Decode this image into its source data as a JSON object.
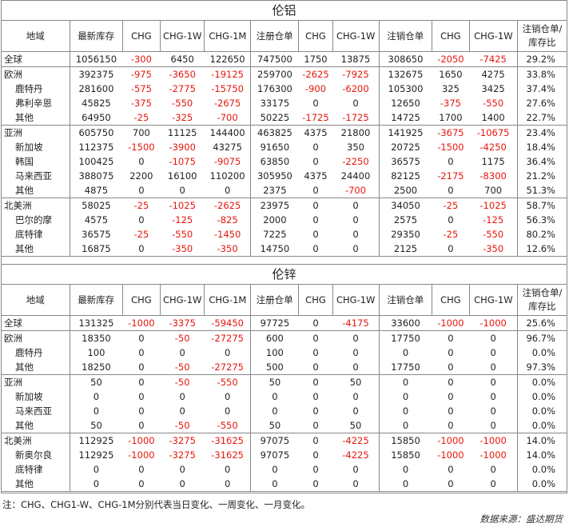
{
  "aluminum": {
    "title": "伦铝",
    "headers": [
      "地域",
      "最新库存",
      "CHG",
      "CHG-1W",
      "CHG-1M",
      "注册仓单",
      "CHG",
      "CHG-1W",
      "注销仓单",
      "CHG",
      "CHG-1W",
      "注销仓单/库存比"
    ],
    "groups": [
      {
        "rows": [
          {
            "region": "全球",
            "level": "region",
            "vals": [
              "1056150",
              "-300",
              "6450",
              "122650",
              "747500",
              "1750",
              "13875",
              "308650",
              "-2050",
              "-7425",
              "29.2%"
            ]
          }
        ]
      },
      {
        "rows": [
          {
            "region": "欧洲",
            "level": "region",
            "vals": [
              "392375",
              "-975",
              "-3650",
              "-19125",
              "259700",
              "-2625",
              "-7925",
              "132675",
              "1650",
              "4275",
              "33.8%"
            ]
          },
          {
            "region": "鹿特丹",
            "level": "sub",
            "vals": [
              "281600",
              "-575",
              "-2775",
              "-15750",
              "176300",
              "-900",
              "-6200",
              "105300",
              "325",
              "3425",
              "37.4%"
            ]
          },
          {
            "region": "弗利辛恩",
            "level": "sub",
            "vals": [
              "45825",
              "-375",
              "-550",
              "-2675",
              "33175",
              "0",
              "0",
              "12650",
              "-375",
              "-550",
              "27.6%"
            ]
          },
          {
            "region": "其他",
            "level": "sub",
            "vals": [
              "64950",
              "-25",
              "-325",
              "-700",
              "50225",
              "-1725",
              "-1725",
              "14725",
              "1700",
              "1400",
              "22.7%"
            ]
          }
        ]
      },
      {
        "rows": [
          {
            "region": "亚洲",
            "level": "region",
            "vals": [
              "605750",
              "700",
              "11125",
              "144400",
              "463825",
              "4375",
              "21800",
              "141925",
              "-3675",
              "-10675",
              "23.4%"
            ]
          },
          {
            "region": "新加坡",
            "level": "sub",
            "vals": [
              "112375",
              "-1500",
              "-3900",
              "43275",
              "91650",
              "0",
              "350",
              "20725",
              "-1500",
              "-4250",
              "18.4%"
            ]
          },
          {
            "region": "韩国",
            "level": "sub",
            "vals": [
              "100425",
              "0",
              "-1075",
              "-9075",
              "63850",
              "0",
              "-2250",
              "36575",
              "0",
              "1175",
              "36.4%"
            ]
          },
          {
            "region": "马来西亚",
            "level": "sub",
            "vals": [
              "388075",
              "2200",
              "16100",
              "110200",
              "305950",
              "4375",
              "24400",
              "82125",
              "-2175",
              "-8300",
              "21.2%"
            ]
          },
          {
            "region": "其他",
            "level": "sub",
            "vals": [
              "4875",
              "0",
              "0",
              "0",
              "2375",
              "0",
              "-700",
              "2500",
              "0",
              "700",
              "51.3%"
            ]
          }
        ]
      },
      {
        "rows": [
          {
            "region": "北美洲",
            "level": "region",
            "vals": [
              "58025",
              "-25",
              "-1025",
              "-2625",
              "23975",
              "0",
              "0",
              "34050",
              "-25",
              "-1025",
              "58.7%"
            ]
          },
          {
            "region": "巴尔的摩",
            "level": "sub",
            "vals": [
              "4575",
              "0",
              "-125",
              "-825",
              "2000",
              "0",
              "0",
              "2575",
              "0",
              "-125",
              "56.3%"
            ]
          },
          {
            "region": "底特律",
            "level": "sub",
            "vals": [
              "36575",
              "-25",
              "-550",
              "-1450",
              "7225",
              "0",
              "0",
              "29350",
              "-25",
              "-550",
              "80.2%"
            ]
          },
          {
            "region": "其他",
            "level": "sub",
            "vals": [
              "16875",
              "0",
              "-350",
              "-350",
              "14750",
              "0",
              "0",
              "2125",
              "0",
              "-350",
              "12.6%"
            ]
          }
        ]
      }
    ]
  },
  "zinc": {
    "title": "伦锌",
    "headers": [
      "地域",
      "最新库存",
      "CHG",
      "CHG-1W",
      "CHG-1M",
      "注册仓单",
      "CHG",
      "CHG-1W",
      "注销仓单",
      "CHG",
      "CHG-1W",
      "注销仓单/库存比"
    ],
    "groups": [
      {
        "rows": [
          {
            "region": "全球",
            "level": "region",
            "vals": [
              "131325",
              "-1000",
              "-3375",
              "-59450",
              "97725",
              "0",
              "-4175",
              "33600",
              "-1000",
              "-1000",
              "25.6%"
            ]
          }
        ]
      },
      {
        "rows": [
          {
            "region": "欧洲",
            "level": "region",
            "vals": [
              "18350",
              "0",
              "-50",
              "-27275",
              "600",
              "0",
              "0",
              "17750",
              "0",
              "0",
              "96.7%"
            ]
          },
          {
            "region": "鹿特丹",
            "level": "sub",
            "vals": [
              "100",
              "0",
              "0",
              "0",
              "100",
              "0",
              "0",
              "0",
              "0",
              "0",
              "0.0%"
            ]
          },
          {
            "region": "其他",
            "level": "sub",
            "vals": [
              "18250",
              "0",
              "-50",
              "-27275",
              "500",
              "0",
              "0",
              "17750",
              "0",
              "0",
              "97.3%"
            ]
          }
        ]
      },
      {
        "rows": [
          {
            "region": "亚洲",
            "level": "region",
            "vals": [
              "50",
              "0",
              "-50",
              "-550",
              "50",
              "0",
              "50",
              "0",
              "0",
              "0",
              "0.0%"
            ]
          },
          {
            "region": "新加坡",
            "level": "sub",
            "vals": [
              "0",
              "0",
              "0",
              "0",
              "0",
              "0",
              "0",
              "0",
              "0",
              "0",
              "0.0%"
            ]
          },
          {
            "region": "马来西亚",
            "level": "sub",
            "vals": [
              "0",
              "0",
              "0",
              "0",
              "0",
              "0",
              "0",
              "0",
              "0",
              "0",
              "0.0%"
            ]
          },
          {
            "region": "其他",
            "level": "sub",
            "vals": [
              "50",
              "0",
              "-50",
              "-550",
              "50",
              "0",
              "50",
              "0",
              "0",
              "0",
              "0.0%"
            ]
          }
        ]
      },
      {
        "rows": [
          {
            "region": "北美洲",
            "level": "region",
            "vals": [
              "112925",
              "-1000",
              "-3275",
              "-31625",
              "97075",
              "0",
              "-4225",
              "15850",
              "-1000",
              "-1000",
              "14.0%"
            ]
          },
          {
            "region": "新奥尔良",
            "level": "sub",
            "vals": [
              "112925",
              "-1000",
              "-3275",
              "-31625",
              "97075",
              "0",
              "-4225",
              "15850",
              "-1000",
              "-1000",
              "14.0%"
            ]
          },
          {
            "region": "底特律",
            "level": "sub",
            "vals": [
              "0",
              "0",
              "0",
              "0",
              "0",
              "0",
              "0",
              "0",
              "0",
              "0",
              "0.0%"
            ]
          },
          {
            "region": "其他",
            "level": "sub",
            "vals": [
              "0",
              "0",
              "0",
              "0",
              "0",
              "0",
              "0",
              "0",
              "0",
              "0",
              "0.0%"
            ]
          }
        ]
      }
    ]
  },
  "footer": {
    "note": "注：CHG、CHG1-W、CHG-1M分别代表当日变化、一周变化、一月变化。",
    "source": "数据来源：盛达期货"
  }
}
